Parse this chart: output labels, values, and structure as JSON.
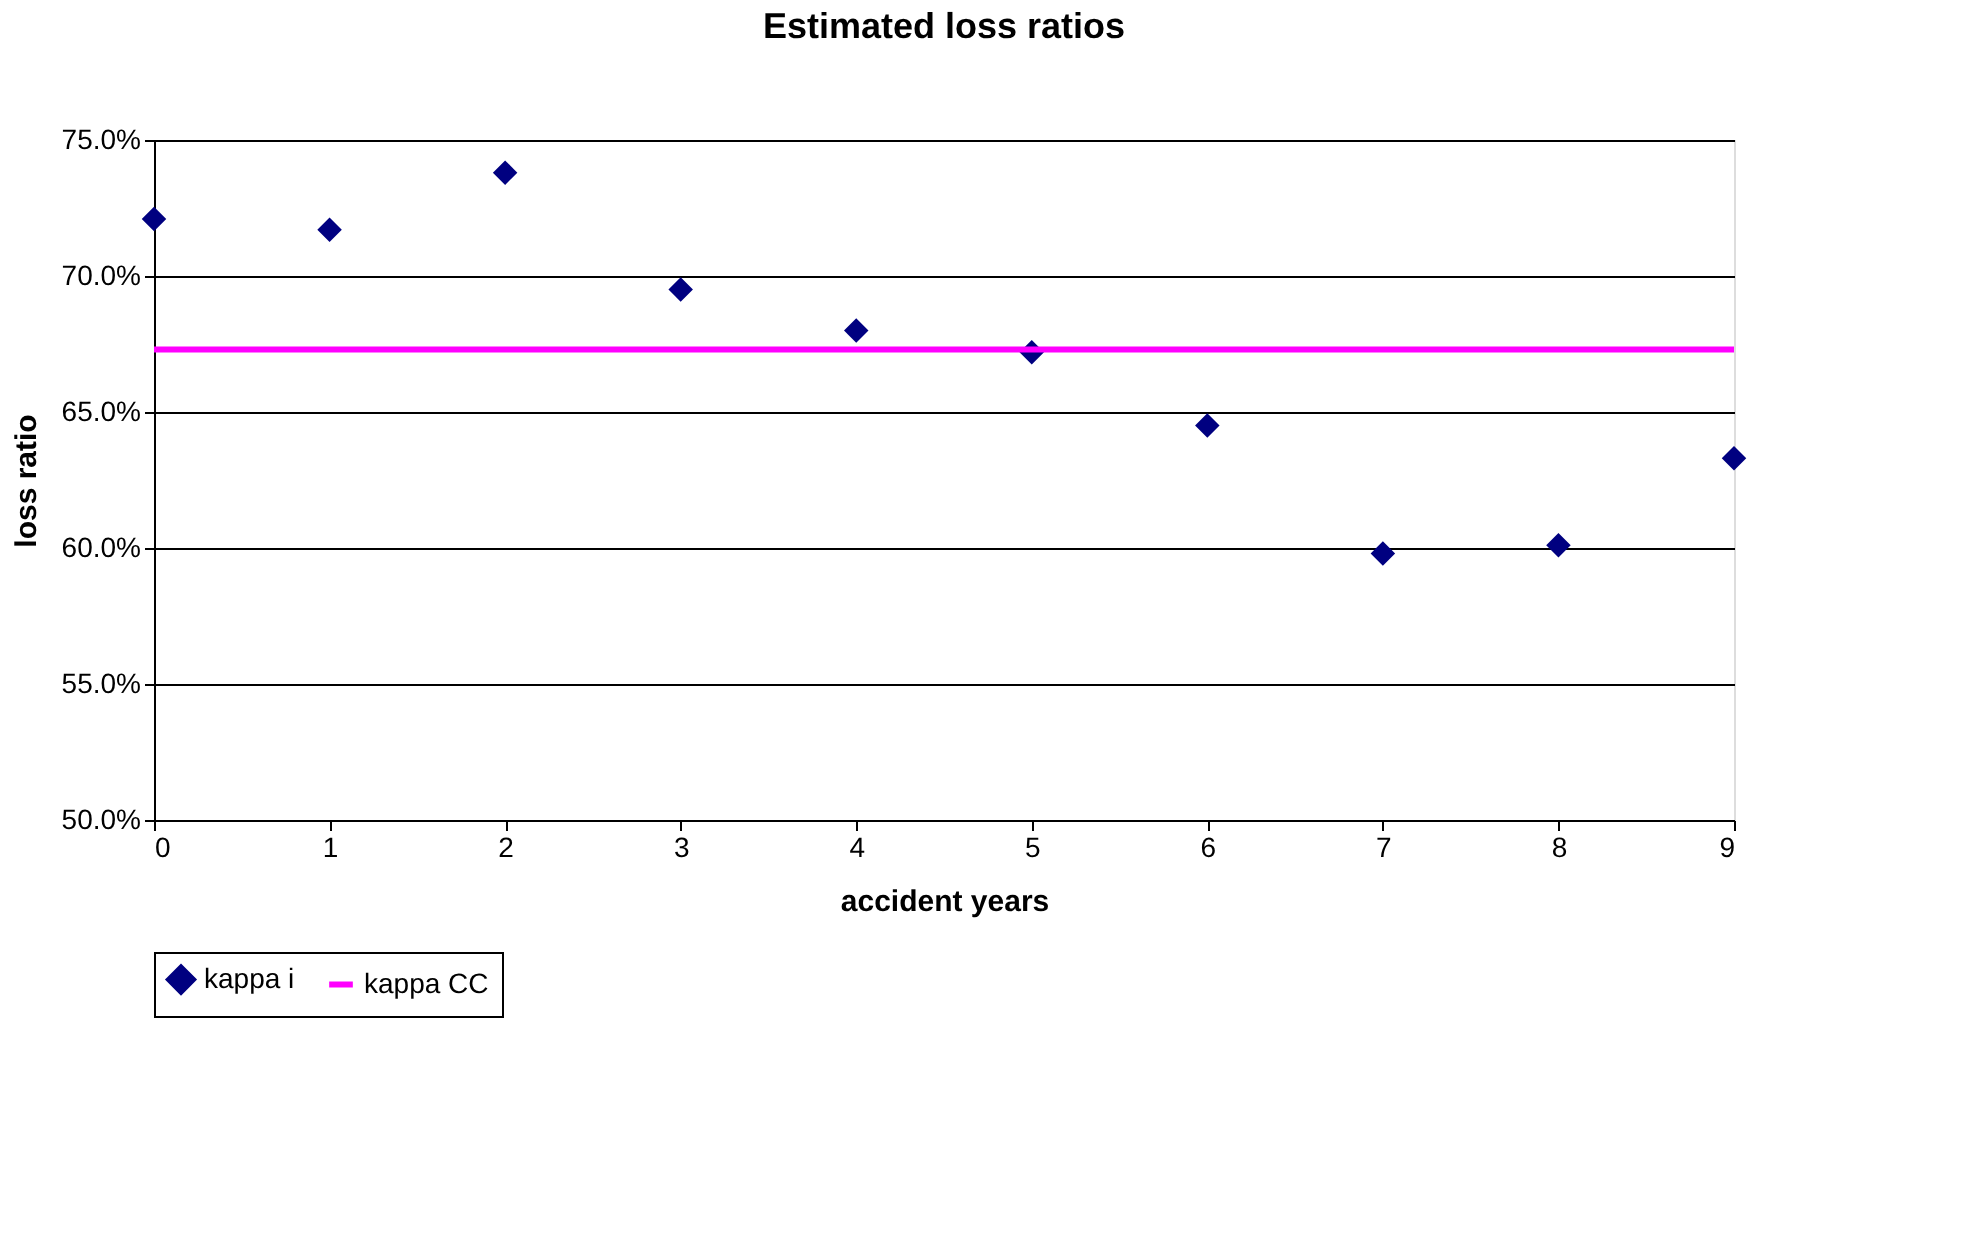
{
  "chart_data": {
    "type": "scatter",
    "title": "Estimated loss ratios",
    "xlabel": "accident years",
    "ylabel": "loss ratio",
    "x": [
      0,
      1,
      2,
      3,
      4,
      5,
      6,
      7,
      8,
      9
    ],
    "series": [
      {
        "name": "kappa i",
        "color": "#000080",
        "marker": "diamond",
        "values": [
          72.1,
          71.7,
          73.8,
          69.5,
          68.0,
          67.2,
          64.5,
          59.8,
          60.1,
          63.3
        ]
      },
      {
        "name": "kappa CC",
        "type": "line",
        "color": "#ff00ff",
        "marker": "none",
        "line_style": "solid",
        "x": [
          0,
          9
        ],
        "values": [
          67.3,
          67.3
        ]
      }
    ],
    "xlim": [
      0,
      9
    ],
    "xticks": [
      0,
      1,
      2,
      3,
      4,
      5,
      6,
      7,
      8,
      9
    ],
    "ylim": [
      50,
      75
    ],
    "yticks": [
      {
        "value": 50,
        "label": "50.0%"
      },
      {
        "value": 55,
        "label": "55.0%"
      },
      {
        "value": 60,
        "label": "60.0%"
      },
      {
        "value": 65,
        "label": "65.0%"
      },
      {
        "value": 70,
        "label": "70.0%"
      },
      {
        "value": 75,
        "label": "75.0%"
      }
    ],
    "grid": "y",
    "legend": "bottom"
  }
}
